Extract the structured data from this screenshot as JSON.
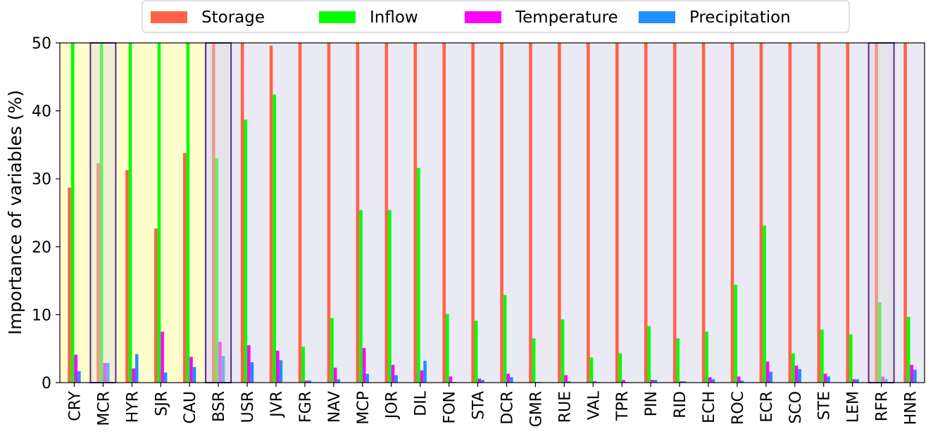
{
  "chart_data": {
    "type": "bar",
    "ylabel": "Importance of variables (%)",
    "xlabel": "",
    "ylim": [
      0,
      50
    ],
    "yticks": [
      0,
      10,
      20,
      30,
      40,
      50
    ],
    "legend_position": "top-center",
    "grid": false,
    "colors": {
      "background": "#eaeaf5",
      "highlight_background": "#ffffcc",
      "box_outline": "#5b2a86",
      "box_fill": "#dcdcdc"
    },
    "highlighted_categories": [
      "CRY",
      "MCR",
      "HYR",
      "SJR",
      "CAU"
    ],
    "boxed_categories": [
      "MCR",
      "BSR",
      "RFR"
    ],
    "categories": [
      "CRY",
      "MCR",
      "HYR",
      "SJR",
      "CAU",
      "BSR",
      "USR",
      "JVR",
      "FGR",
      "NAV",
      "MCP",
      "JOR",
      "DIL",
      "FON",
      "STA",
      "DCR",
      "GMR",
      "RUE",
      "VAL",
      "TPR",
      "PIN",
      "RID",
      "ECH",
      "ROC",
      "ECR",
      "SCO",
      "STE",
      "LEM",
      "RFR",
      "HNR"
    ],
    "series": [
      {
        "name": "Storage",
        "color": "#ff6347",
        "values": [
          28.7,
          32.3,
          31.3,
          22.7,
          33.8,
          50,
          50,
          49.6,
          50,
          50,
          50,
          50,
          50,
          50,
          50,
          50,
          50,
          50,
          50,
          50,
          50,
          50,
          50,
          50,
          50,
          50,
          50,
          50,
          50,
          50
        ]
      },
      {
        "name": "Inflow",
        "color": "#00ff00",
        "values": [
          50,
          50,
          50,
          50,
          50,
          33.0,
          38.7,
          42.4,
          5.3,
          9.5,
          25.4,
          25.4,
          31.6,
          10.1,
          9.1,
          12.9,
          6.5,
          9.3,
          3.7,
          4.3,
          8.3,
          6.5,
          7.5,
          14.4,
          23.1,
          4.3,
          7.8,
          7.1,
          11.8,
          9.7
        ]
      },
      {
        "name": "Temperature",
        "color": "#ff00ff",
        "values": [
          4.1,
          2.9,
          2.1,
          7.5,
          3.8,
          6.0,
          5.5,
          4.7,
          0.3,
          2.2,
          5.1,
          2.6,
          1.8,
          0.9,
          0.6,
          1.3,
          0.1,
          1.1,
          0.2,
          0.4,
          0.4,
          0.2,
          0.8,
          0.9,
          3.1,
          2.5,
          1.3,
          0.5,
          0.9,
          2.6
        ]
      },
      {
        "name": "Precipitation",
        "color": "#1e90ff",
        "values": [
          1.7,
          2.9,
          4.2,
          1.5,
          2.3,
          3.9,
          3.0,
          3.3,
          0.3,
          0.5,
          1.3,
          1.1,
          3.2,
          0.1,
          0.4,
          0.8,
          0.1,
          0.2,
          0.1,
          0.1,
          0.4,
          0.2,
          0.5,
          0.3,
          1.6,
          2.0,
          0.9,
          0.5,
          0.5,
          1.9
        ]
      }
    ]
  }
}
